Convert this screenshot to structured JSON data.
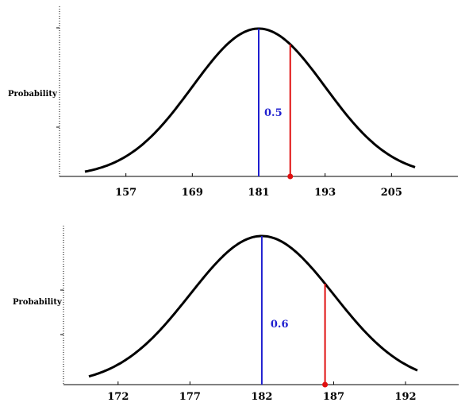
{
  "colors": {
    "curve": "#000000",
    "mean_line": "#1f1fcf",
    "marker_line": "#e01010",
    "background": "#ffffff"
  },
  "chart_data": [
    {
      "type": "line",
      "distribution": "normal",
      "mean": 181,
      "sd": 12,
      "ylabel": "Probability",
      "xlabel": "",
      "x_ticks": [
        157,
        169,
        181,
        193,
        205
      ],
      "xlim": [
        145,
        217
      ],
      "mean_line_x": 181,
      "marker_x": 186.7,
      "annotation": "0.5",
      "grid": false,
      "legend": "none"
    },
    {
      "type": "line",
      "distribution": "normal",
      "mean": 182,
      "sd": 5,
      "ylabel": "Probability",
      "xlabel": "",
      "x_ticks": [
        172,
        177,
        182,
        187,
        192
      ],
      "xlim": [
        168.2,
        195.7
      ],
      "mean_line_x": 182,
      "marker_x": 186.4,
      "annotation": "0.6",
      "grid": false,
      "legend": "none"
    }
  ]
}
